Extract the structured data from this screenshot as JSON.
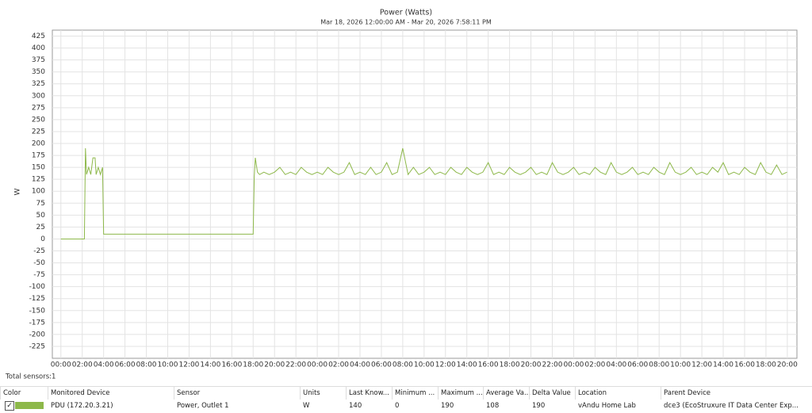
{
  "chart_data": {
    "type": "line",
    "title": "Power (Watts)",
    "subtitle": "Mar 18, 2026 12:00:00 AM - Mar 20, 2026 7:58:11 PM",
    "y_label": "W",
    "xlim": [
      -0.8,
      68.9
    ],
    "xticks": [
      {
        "value": 0,
        "label": "00:00"
      },
      {
        "value": 2,
        "label": "02:00"
      },
      {
        "value": 4,
        "label": "04:00"
      },
      {
        "value": 6,
        "label": "06:00"
      },
      {
        "value": 8,
        "label": "08:00"
      },
      {
        "value": 10,
        "label": "10:00"
      },
      {
        "value": 12,
        "label": "12:00"
      },
      {
        "value": 14,
        "label": "14:00"
      },
      {
        "value": 16,
        "label": "16:00"
      },
      {
        "value": 18,
        "label": "18:00"
      },
      {
        "value": 20,
        "label": "20:00"
      },
      {
        "value": 22,
        "label": "22:00"
      },
      {
        "value": 24,
        "label": "00:00"
      },
      {
        "value": 26,
        "label": "02:00"
      },
      {
        "value": 28,
        "label": "04:00"
      },
      {
        "value": 30,
        "label": "06:00"
      },
      {
        "value": 32,
        "label": "08:00"
      },
      {
        "value": 34,
        "label": "10:00"
      },
      {
        "value": 36,
        "label": "12:00"
      },
      {
        "value": 38,
        "label": "14:00"
      },
      {
        "value": 40,
        "label": "16:00"
      },
      {
        "value": 42,
        "label": "18:00"
      },
      {
        "value": 44,
        "label": "20:00"
      },
      {
        "value": 46,
        "label": "22:00"
      },
      {
        "value": 48,
        "label": "00:00"
      },
      {
        "value": 50,
        "label": "02:00"
      },
      {
        "value": 52,
        "label": "04:00"
      },
      {
        "value": 54,
        "label": "06:00"
      },
      {
        "value": 56,
        "label": "08:00"
      },
      {
        "value": 58,
        "label": "10:00"
      },
      {
        "value": 60,
        "label": "12:00"
      },
      {
        "value": 62,
        "label": "14:00"
      },
      {
        "value": 64,
        "label": "16:00"
      },
      {
        "value": 66,
        "label": "18:00"
      },
      {
        "value": 68,
        "label": "20:00"
      }
    ],
    "ylim": [
      -250,
      437.5
    ],
    "yticks": [
      -225,
      -200,
      -175,
      -150,
      -125,
      -100,
      -75,
      -50,
      -25,
      0,
      25,
      50,
      75,
      100,
      125,
      150,
      175,
      200,
      225,
      250,
      275,
      300,
      325,
      350,
      375,
      400,
      425
    ],
    "grid": true,
    "x": [
      0,
      2.2,
      2.3,
      2.4,
      2.6,
      2.8,
      3.0,
      3.2,
      3.3,
      3.5,
      3.7,
      3.9,
      4.0,
      18.0,
      18.1,
      18.2,
      18.4,
      18.6,
      19,
      19.5,
      20,
      20.5,
      21,
      21.5,
      22,
      22.5,
      23,
      23.5,
      24,
      24.5,
      25,
      25.5,
      26,
      26.5,
      27,
      27.5,
      28,
      28.5,
      29,
      29.5,
      30,
      30.5,
      31,
      31.5,
      32,
      32.5,
      33,
      33.5,
      34,
      34.5,
      35,
      35.5,
      36,
      36.5,
      37,
      37.5,
      38,
      38.5,
      39,
      39.5,
      40,
      40.5,
      41,
      41.5,
      42,
      42.5,
      43,
      43.5,
      44,
      44.5,
      45,
      45.5,
      46,
      46.5,
      47,
      47.5,
      48,
      48.5,
      49,
      49.5,
      50,
      50.5,
      51,
      51.5,
      52,
      52.5,
      53,
      53.5,
      54,
      54.5,
      55,
      55.5,
      56,
      56.5,
      57,
      57.5,
      58,
      58.5,
      59,
      59.5,
      60,
      60.5,
      61,
      61.5,
      62,
      62.5,
      63,
      63.5,
      64,
      64.5,
      65,
      65.5,
      66,
      66.5,
      67,
      67.5,
      67.97
    ],
    "series": [
      {
        "name": "Power, Outlet 1",
        "color": "#8db84a",
        "values": [
          0,
          0,
          190,
          135,
          150,
          135,
          170,
          170,
          135,
          150,
          135,
          150,
          10,
          10,
          130,
          170,
          140,
          135,
          140,
          135,
          140,
          150,
          135,
          140,
          135,
          150,
          140,
          135,
          140,
          135,
          150,
          140,
          135,
          140,
          160,
          135,
          140,
          135,
          150,
          135,
          140,
          160,
          135,
          140,
          190,
          135,
          150,
          135,
          140,
          150,
          135,
          140,
          135,
          150,
          140,
          135,
          150,
          140,
          135,
          140,
          160,
          135,
          140,
          135,
          150,
          140,
          135,
          140,
          150,
          135,
          140,
          135,
          160,
          140,
          135,
          140,
          150,
          135,
          140,
          135,
          150,
          140,
          135,
          160,
          140,
          135,
          140,
          150,
          135,
          140,
          135,
          150,
          140,
          135,
          160,
          140,
          135,
          140,
          150,
          135,
          140,
          135,
          150,
          140,
          160,
          135,
          140,
          135,
          150,
          140,
          135,
          160,
          140,
          135,
          155,
          135,
          140
        ]
      }
    ]
  },
  "footer": "Total sensors:1",
  "table": {
    "headers": [
      "Color",
      "Monitored Device",
      "Sensor",
      "Units",
      "Last Know...",
      "Minimum ...",
      "Maximum ...",
      "Average Va...",
      "Delta Value",
      "Location",
      "Parent Device"
    ],
    "rows": [
      [
        "PDU (172.20.3.21)",
        "Power, Outlet 1",
        "W",
        "140",
        "0",
        "190",
        "108",
        "190",
        "vAndu Home Lab",
        "dce3 (EcoStruxure IT Data Center Exp..."
      ]
    ]
  }
}
